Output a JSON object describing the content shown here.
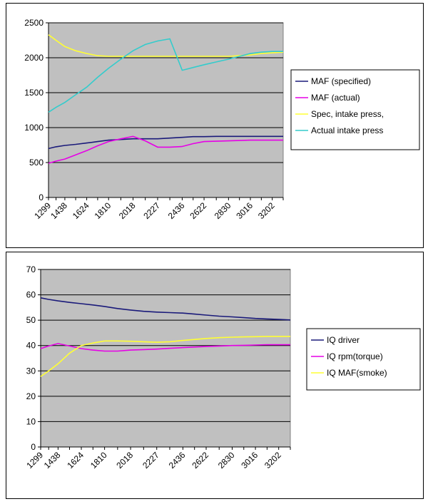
{
  "chart_data": [
    {
      "type": "line",
      "categories": [
        "1299",
        "1438",
        "1624",
        "1810",
        "2018",
        "2227",
        "2436",
        "2622",
        "2830",
        "3016",
        "3202"
      ],
      "x": [
        1299,
        1363,
        1438,
        1530,
        1624,
        1717,
        1810,
        1914,
        2018,
        2122,
        2227,
        2331,
        2436,
        2529,
        2622,
        2726,
        2830,
        2923,
        3016,
        3109,
        3202,
        3295
      ],
      "series": [
        {
          "name": "MAF (specified)",
          "color": "#1a1a7a",
          "values": [
            700,
            725,
            745,
            760,
            780,
            800,
            820,
            830,
            840,
            840,
            840,
            850,
            860,
            870,
            870,
            875,
            875,
            875,
            875,
            875,
            875,
            875
          ]
        },
        {
          "name": "MAF (actual)",
          "color": "#e600e6",
          "values": [
            490,
            520,
            550,
            610,
            670,
            740,
            800,
            840,
            875,
            810,
            720,
            720,
            730,
            770,
            800,
            805,
            810,
            815,
            820,
            820,
            820,
            820
          ]
        },
        {
          "name": "Spec, intake press,",
          "color": "#ffff33",
          "values": [
            2330,
            2250,
            2160,
            2100,
            2060,
            2030,
            2020,
            2020,
            2020,
            2020,
            2020,
            2020,
            2020,
            2020,
            2020,
            2020,
            2020,
            2030,
            2040,
            2060,
            2070,
            2080
          ]
        },
        {
          "name": "Actual intake press",
          "color": "#33cccc",
          "values": [
            1220,
            1290,
            1360,
            1470,
            1580,
            1720,
            1850,
            1980,
            2100,
            2190,
            2240,
            2270,
            1820,
            1860,
            1900,
            1940,
            1980,
            2020,
            2060,
            2080,
            2090,
            2090
          ]
        }
      ],
      "yticks": [
        "0",
        "500",
        "1000",
        "1500",
        "2000",
        "2500"
      ],
      "ylim": [
        0,
        2500
      ],
      "grid": true,
      "legend": "right"
    },
    {
      "type": "line",
      "categories": [
        "1299",
        "1438",
        "1624",
        "1810",
        "2018",
        "2227",
        "2436",
        "2622",
        "2830",
        "3016",
        "3202"
      ],
      "x": [
        1299,
        1363,
        1438,
        1530,
        1624,
        1717,
        1810,
        1914,
        2018,
        2122,
        2227,
        2331,
        2436,
        2529,
        2622,
        2726,
        2830,
        2923,
        3016,
        3109,
        3202,
        3295
      ],
      "series": [
        {
          "name": "IQ driver",
          "color": "#1a1a7a",
          "values": [
            58.8,
            58.2,
            57.6,
            57.0,
            56.5,
            56.0,
            55.4,
            54.6,
            54.0,
            53.5,
            53.2,
            53.0,
            52.8,
            52.4,
            52.0,
            51.6,
            51.3,
            51.0,
            50.7,
            50.5,
            50.3,
            50.1
          ]
        },
        {
          "name": "IQ rpm(torque)",
          "color": "#e600e6",
          "values": [
            38.8,
            39.8,
            40.8,
            39.8,
            38.8,
            38.2,
            37.8,
            37.8,
            38.2,
            38.4,
            38.6,
            38.9,
            39.2,
            39.4,
            39.6,
            39.8,
            40.0,
            40.1,
            40.2,
            40.3,
            40.3,
            40.3
          ]
        },
        {
          "name": "IQ MAF(smoke)",
          "color": "#ffff33",
          "values": [
            27.8,
            30.0,
            32.8,
            37.0,
            40.0,
            41.0,
            41.8,
            41.8,
            41.7,
            41.5,
            41.3,
            41.5,
            42.0,
            42.4,
            42.8,
            43.1,
            43.3,
            43.4,
            43.5,
            43.6,
            43.6,
            43.6
          ]
        }
      ],
      "yticks": [
        "0",
        "10",
        "20",
        "30",
        "40",
        "50",
        "60",
        "70"
      ],
      "ylim": [
        0,
        70
      ],
      "grid": true,
      "legend": "right"
    }
  ]
}
